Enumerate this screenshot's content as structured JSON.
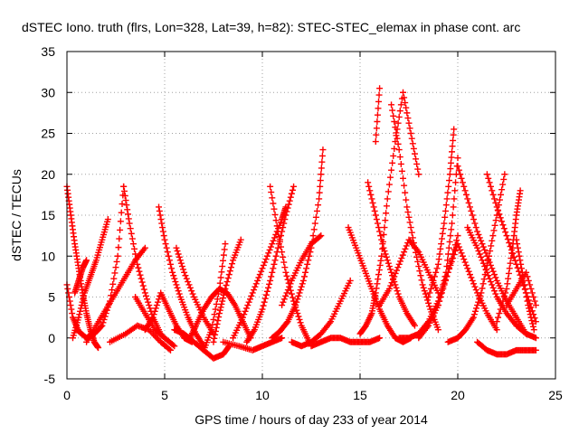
{
  "chart_data": {
    "type": "scatter",
    "title": "dSTEC Iono. truth (flrs, Lon=328, Lat=39, h=82): STEC-STEC_elemax in phase cont. arc",
    "xlabel": "GPS time / hours of day 233 of year 2014",
    "ylabel": "dSTEC  / TECUs",
    "xlim": [
      0,
      25
    ],
    "ylim": [
      -5,
      35
    ],
    "xticks": [
      0,
      5,
      10,
      15,
      20,
      25
    ],
    "yticks": [
      -5,
      0,
      5,
      10,
      15,
      20,
      25,
      30,
      35
    ],
    "grid": true,
    "marker": "+",
    "color": "#ff0000",
    "series": [
      {
        "x": [
          0.0,
          0.2,
          0.4,
          0.6,
          0.8,
          1.0,
          1.2,
          1.4,
          1.6
        ],
        "y": [
          18.5,
          15.0,
          11.5,
          8.5,
          5.5,
          3.0,
          1.0,
          -0.5,
          -1.2
        ]
      },
      {
        "x": [
          0.0,
          0.3,
          0.6,
          1.0,
          1.4,
          1.8,
          2.2,
          2.6,
          2.9
        ],
        "y": [
          6.5,
          2.5,
          0.8,
          0.0,
          0.5,
          1.5,
          4.5,
          10.0,
          18.5
        ]
      },
      {
        "x": [
          0.3,
          0.6,
          0.9,
          1.2,
          1.5,
          1.8,
          2.1
        ],
        "y": [
          0.0,
          2.5,
          5.5,
          7.5,
          9.5,
          12.0,
          14.5
        ]
      },
      {
        "x": [
          0.4,
          0.6,
          0.8,
          1.0
        ],
        "y": [
          5.5,
          7.0,
          8.5,
          9.5
        ]
      },
      {
        "x": [
          1.0,
          1.5,
          2.0,
          2.5,
          3.0,
          3.5,
          4.0
        ],
        "y": [
          -0.5,
          1.5,
          3.5,
          5.5,
          7.5,
          9.5,
          11.0
        ]
      },
      {
        "x": [
          2.2,
          3.0,
          3.6,
          4.2,
          4.8,
          5.3
        ],
        "y": [
          -0.5,
          0.5,
          1.5,
          1.0,
          -0.5,
          -1.5
        ]
      },
      {
        "x": [
          2.9,
          3.2,
          3.6,
          4.0,
          4.4,
          4.8
        ],
        "y": [
          18.5,
          14.0,
          9.0,
          5.5,
          2.5,
          0.5
        ]
      },
      {
        "x": [
          3.5,
          4.0,
          4.5,
          5.0,
          5.5
        ],
        "y": [
          5.0,
          3.0,
          1.0,
          0.0,
          -1.0
        ]
      },
      {
        "x": [
          4.0,
          4.4,
          4.8,
          5.2,
          5.6,
          6.0,
          6.4
        ],
        "y": [
          1.0,
          2.5,
          5.5,
          3.5,
          1.5,
          0.0,
          -0.5
        ]
      },
      {
        "x": [
          4.7,
          5.0,
          5.4,
          5.8,
          6.2,
          6.6,
          7.0
        ],
        "y": [
          16.0,
          12.0,
          8.0,
          5.0,
          2.5,
          0.5,
          -1.0
        ]
      },
      {
        "x": [
          5.6,
          6.0,
          6.5,
          7.0,
          7.5
        ],
        "y": [
          11.0,
          8.0,
          5.0,
          2.5,
          0.5
        ]
      },
      {
        "x": [
          5.5,
          6.0,
          6.5,
          7.0,
          7.5,
          8.0,
          8.3
        ],
        "y": [
          1.0,
          0.5,
          -0.5,
          -1.5,
          -2.5,
          -2.0,
          -1.0
        ]
      },
      {
        "x": [
          6.3,
          6.6,
          7.0,
          7.4,
          7.8,
          8.2,
          8.6,
          9.0,
          9.4
        ],
        "y": [
          0.0,
          1.5,
          3.5,
          5.0,
          6.0,
          5.5,
          4.0,
          2.0,
          0.0
        ]
      },
      {
        "x": [
          7.0,
          7.4,
          7.8,
          8.1
        ],
        "y": [
          -1.5,
          1.0,
          6.0,
          11.5
        ]
      },
      {
        "x": [
          7.5,
          7.8,
          8.1,
          8.5,
          8.9
        ],
        "y": [
          -0.5,
          3.0,
          6.0,
          9.5,
          12.0
        ]
      },
      {
        "x": [
          8.0,
          8.8,
          9.5,
          10.0,
          10.5,
          11.0
        ],
        "y": [
          -0.5,
          -1.0,
          -1.5,
          -1.0,
          -0.5,
          0.0
        ]
      },
      {
        "x": [
          8.5,
          9.0,
          9.5,
          10.0,
          10.5,
          11.0,
          11.2
        ],
        "y": [
          0.0,
          2.5,
          5.5,
          8.5,
          11.5,
          14.5,
          16.0
        ]
      },
      {
        "x": [
          9.2,
          9.6,
          10.0,
          10.4,
          10.8,
          11.2,
          11.6
        ],
        "y": [
          -0.5,
          1.0,
          3.5,
          7.0,
          11.0,
          15.0,
          18.5
        ]
      },
      {
        "x": [
          10.4,
          10.8,
          11.2,
          11.6,
          12.0,
          12.4
        ],
        "y": [
          18.5,
          13.0,
          8.0,
          4.5,
          1.5,
          -0.5
        ]
      },
      {
        "x": [
          10.5,
          10.9,
          11.3,
          11.7,
          12.1,
          12.5,
          12.9,
          13.1
        ],
        "y": [
          0.0,
          0.8,
          2.0,
          4.0,
          7.0,
          11.0,
          17.0,
          23.0
        ]
      },
      {
        "x": [
          11.0,
          11.5,
          12.0,
          12.5,
          13.0
        ],
        "y": [
          4.0,
          7.0,
          9.5,
          11.5,
          12.5
        ]
      },
      {
        "x": [
          11.5,
          12.0,
          12.5,
          13.0,
          13.5,
          14.0,
          14.5
        ],
        "y": [
          -0.5,
          -1.0,
          -0.5,
          0.5,
          2.0,
          4.5,
          7.0
        ]
      },
      {
        "x": [
          12.5,
          13.0,
          13.5,
          14.0,
          14.5,
          15.0,
          15.5,
          16.0
        ],
        "y": [
          -1.0,
          -0.5,
          0.0,
          0.0,
          -0.5,
          -0.5,
          -0.5,
          0.0
        ]
      },
      {
        "x": [
          14.4,
          14.8,
          15.2,
          15.6,
          16.0,
          16.4,
          16.8,
          17.2,
          17.6
        ],
        "y": [
          13.5,
          11.0,
          8.5,
          6.0,
          3.5,
          1.5,
          0.0,
          -0.5,
          0.0
        ]
      },
      {
        "x": [
          15.0,
          15.3,
          15.6,
          15.8,
          16.1,
          16.4,
          16.8,
          17.2,
          17.6,
          18.0
        ],
        "y": [
          0.5,
          1.5,
          3.0,
          5.5,
          10.0,
          17.0,
          24.0,
          30.0,
          25.0,
          20.0
        ]
      },
      {
        "x": [
          15.8,
          16.0
        ],
        "y": [
          24.0,
          30.5
        ]
      },
      {
        "x": [
          15.4,
          15.8,
          16.2,
          16.6,
          17.0,
          17.4,
          17.8
        ],
        "y": [
          19.0,
          15.0,
          11.0,
          8.0,
          5.0,
          3.0,
          1.5
        ]
      },
      {
        "x": [
          16.6,
          17.0,
          17.4,
          17.8,
          18.2,
          18.6,
          19.0
        ],
        "y": [
          28.5,
          23.0,
          16.0,
          11.0,
          6.5,
          3.5,
          1.0
        ]
      },
      {
        "x": [
          16.0,
          16.5,
          17.0,
          17.5,
          18.0,
          18.5,
          19.0
        ],
        "y": [
          4.0,
          6.0,
          9.0,
          12.0,
          10.5,
          8.0,
          5.5
        ]
      },
      {
        "x": [
          17.0,
          17.5,
          18.0,
          18.5,
          19.0,
          19.5,
          20.0
        ],
        "y": [
          0.0,
          0.0,
          0.5,
          2.0,
          4.5,
          8.0,
          12.5
        ]
      },
      {
        "x": [
          18.0,
          18.5,
          19.0,
          19.4,
          19.7,
          20.0
        ],
        "y": [
          0.0,
          1.5,
          4.0,
          8.0,
          14.0,
          22.0
        ]
      },
      {
        "x": [
          18.5,
          19.0,
          19.3,
          19.6,
          19.8
        ],
        "y": [
          5.0,
          9.0,
          14.0,
          20.0,
          25.5
        ]
      },
      {
        "x": [
          19.0,
          19.5,
          20.0,
          20.5,
          21.0,
          21.5,
          22.0
        ],
        "y": [
          4.0,
          8.0,
          11.5,
          8.5,
          5.5,
          3.0,
          1.0
        ]
      },
      {
        "x": [
          19.5,
          20.0,
          20.4,
          20.8,
          21.2,
          21.6,
          22.0,
          22.4
        ],
        "y": [
          -0.5,
          0.0,
          1.0,
          2.5,
          5.5,
          10.0,
          15.0,
          20.0
        ]
      },
      {
        "x": [
          20.0,
          20.5,
          21.0,
          21.5,
          22.0,
          22.5,
          23.0,
          23.5
        ],
        "y": [
          21.0,
          17.0,
          13.0,
          10.0,
          7.0,
          4.5,
          2.5,
          0.5
        ]
      },
      {
        "x": [
          20.5,
          21.0,
          21.5,
          22.0,
          22.5,
          23.0,
          23.5,
          24.0
        ],
        "y": [
          13.5,
          11.0,
          8.0,
          5.0,
          3.0,
          1.5,
          0.5,
          0.0
        ]
      },
      {
        "x": [
          21.5,
          22.0,
          22.5,
          23.0,
          23.5,
          24.0
        ],
        "y": [
          20.0,
          16.0,
          12.5,
          9.0,
          5.5,
          2.0
        ]
      },
      {
        "x": [
          21.0,
          21.5,
          22.0,
          22.5,
          23.0,
          23.5,
          24.0
        ],
        "y": [
          -0.5,
          -1.5,
          -2.0,
          -2.0,
          -1.5,
          -1.5,
          -1.5
        ]
      },
      {
        "x": [
          22.0,
          22.5,
          22.8,
          23.0,
          23.2
        ],
        "y": [
          2.0,
          6.0,
          11.0,
          15.0,
          18.0
        ]
      },
      {
        "x": [
          22.5,
          23.0,
          23.5,
          24.0
        ],
        "y": [
          4.0,
          6.0,
          8.0,
          4.0
        ]
      },
      {
        "x": [
          23.0,
          23.3,
          23.6,
          23.9
        ],
        "y": [
          12.0,
          8.0,
          4.0,
          1.0
        ]
      }
    ]
  }
}
